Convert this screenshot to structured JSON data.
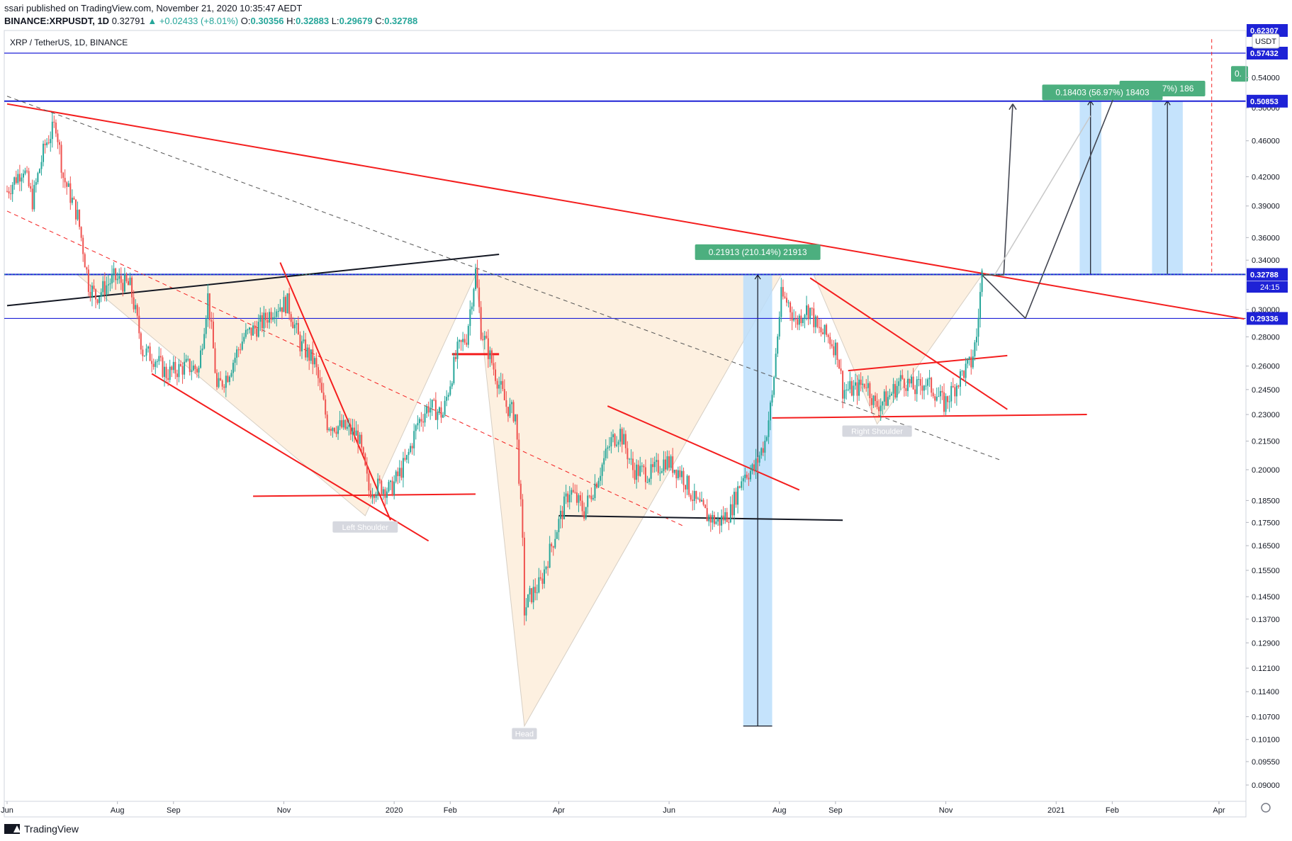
{
  "header": {
    "published": "ssari published on TradingView.com, November 21, 2020 10:35:47 AEDT",
    "symbol": "BINANCE:XRPUSDT, 1D",
    "price": "0.32791",
    "change": "+0.02433 (+8.01%)",
    "o_label": "O:",
    "o": "0.30356",
    "h_label": "H:",
    "h": "0.32883",
    "l_label": "L:",
    "l": "0.29679",
    "c_label": "C:",
    "c": "0.32788"
  },
  "footer": {
    "brand": "TradingView"
  },
  "colors": {
    "up": "#26a69a",
    "down": "#ef5350",
    "trend_red": "#f41e1e",
    "level_blue": "#1e22d6",
    "measure_fill": "#bbdefb",
    "pattern_fill": "#fdf0e0",
    "label_green": "#4caf7f"
  },
  "chart_data": {
    "type": "candlestick",
    "title": "XRP / TetherUS, 1D, BINANCE",
    "currency": "USDT",
    "scale": "log",
    "ylim": [
      0.0865,
      0.6
    ],
    "y_ticks": [
      "0.54000",
      "0.50000",
      "0.46000",
      "0.42000",
      "0.39000",
      "0.36000",
      "0.34000",
      "0.30000",
      "0.28000",
      "0.26000",
      "0.24500",
      "0.23000",
      "0.21500",
      "0.20000",
      "0.18500",
      "0.17500",
      "0.16500",
      "0.15500",
      "0.14500",
      "0.13700",
      "0.12900",
      "0.12100",
      "0.11400",
      "0.10700",
      "0.10100",
      "0.09550",
      "0.09000"
    ],
    "y_tick_values": [
      0.54,
      0.5,
      0.46,
      0.42,
      0.39,
      0.36,
      0.34,
      0.3,
      0.28,
      0.26,
      0.245,
      0.23,
      0.215,
      0.2,
      0.185,
      0.175,
      0.165,
      0.155,
      0.145,
      0.137,
      0.129,
      0.121,
      0.114,
      0.107,
      0.101,
      0.0955,
      0.09
    ],
    "x_range": [
      "2019-06-01",
      "2021-04-12"
    ],
    "x_ticks": [
      {
        "label": "Jun",
        "date": "2019-06-01"
      },
      {
        "label": "Aug",
        "date": "2019-08-01"
      },
      {
        "label": "Sep",
        "date": "2019-09-01"
      },
      {
        "label": "Nov",
        "date": "2019-11-01"
      },
      {
        "label": "2020",
        "date": "2020-01-01"
      },
      {
        "label": "Feb",
        "date": "2020-02-01"
      },
      {
        "label": "Apr",
        "date": "2020-04-01"
      },
      {
        "label": "Jun",
        "date": "2020-06-01"
      },
      {
        "label": "Aug",
        "date": "2020-08-01"
      },
      {
        "label": "Sep",
        "date": "2020-09-01"
      },
      {
        "label": "Nov",
        "date": "2020-11-01"
      },
      {
        "label": "2021",
        "date": "2021-01-01"
      },
      {
        "label": "Feb",
        "date": "2021-02-01"
      },
      {
        "label": "Apr",
        "date": "2021-04-01"
      }
    ],
    "price_path": [
      [
        "2019-06-01",
        0.405
      ],
      [
        "2019-06-10",
        0.43
      ],
      [
        "2019-06-15",
        0.395
      ],
      [
        "2019-06-22",
        0.455
      ],
      [
        "2019-06-28",
        0.48
      ],
      [
        "2019-07-02",
        0.42
      ],
      [
        "2019-07-10",
        0.38
      ],
      [
        "2019-07-16",
        0.32
      ],
      [
        "2019-07-20",
        0.31
      ],
      [
        "2019-07-30",
        0.325
      ],
      [
        "2019-08-08",
        0.318
      ],
      [
        "2019-08-15",
        0.27
      ],
      [
        "2019-08-22",
        0.265
      ],
      [
        "2019-08-28",
        0.255
      ],
      [
        "2019-09-08",
        0.26
      ],
      [
        "2019-09-15",
        0.258
      ],
      [
        "2019-09-20",
        0.31
      ],
      [
        "2019-09-25",
        0.245
      ],
      [
        "2019-10-01",
        0.255
      ],
      [
        "2019-10-10",
        0.28
      ],
      [
        "2019-10-20",
        0.29
      ],
      [
        "2019-10-27",
        0.302
      ],
      [
        "2019-11-03",
        0.305
      ],
      [
        "2019-11-10",
        0.275
      ],
      [
        "2019-11-18",
        0.262
      ],
      [
        "2019-11-25",
        0.225
      ],
      [
        "2019-12-05",
        0.222
      ],
      [
        "2019-12-12",
        0.218
      ],
      [
        "2019-12-18",
        0.19
      ],
      [
        "2019-12-24",
        0.192
      ],
      [
        "2019-12-30",
        0.19
      ],
      [
        "2020-01-08",
        0.205
      ],
      [
        "2020-01-14",
        0.225
      ],
      [
        "2020-01-20",
        0.235
      ],
      [
        "2020-01-28",
        0.23
      ],
      [
        "2020-02-05",
        0.27
      ],
      [
        "2020-02-10",
        0.28
      ],
      [
        "2020-02-15",
        0.33
      ],
      [
        "2020-02-18",
        0.285
      ],
      [
        "2020-02-22",
        0.27
      ],
      [
        "2020-02-26",
        0.255
      ],
      [
        "2020-03-03",
        0.235
      ],
      [
        "2020-03-08",
        0.23
      ],
      [
        "2020-03-12",
        0.165
      ],
      [
        "2020-03-13",
        0.14
      ],
      [
        "2020-03-16",
        0.145
      ],
      [
        "2020-03-22",
        0.15
      ],
      [
        "2020-03-30",
        0.17
      ],
      [
        "2020-04-07",
        0.19
      ],
      [
        "2020-04-15",
        0.18
      ],
      [
        "2020-04-22",
        0.195
      ],
      [
        "2020-04-30",
        0.215
      ],
      [
        "2020-05-05",
        0.22
      ],
      [
        "2020-05-12",
        0.2
      ],
      [
        "2020-05-22",
        0.198
      ],
      [
        "2020-05-30",
        0.205
      ],
      [
        "2020-06-08",
        0.198
      ],
      [
        "2020-06-15",
        0.185
      ],
      [
        "2020-06-22",
        0.178
      ],
      [
        "2020-06-28",
        0.175
      ],
      [
        "2020-07-05",
        0.18
      ],
      [
        "2020-07-12",
        0.198
      ],
      [
        "2020-07-18",
        0.2
      ],
      [
        "2020-07-24",
        0.215
      ],
      [
        "2020-07-28",
        0.24
      ],
      [
        "2020-08-02",
        0.31
      ],
      [
        "2020-08-06",
        0.305
      ],
      [
        "2020-08-10",
        0.29
      ],
      [
        "2020-08-15",
        0.3
      ],
      [
        "2020-08-18",
        0.3
      ],
      [
        "2020-08-22",
        0.285
      ],
      [
        "2020-08-28",
        0.28
      ],
      [
        "2020-09-02",
        0.27
      ],
      [
        "2020-09-05",
        0.245
      ],
      [
        "2020-09-12",
        0.245
      ],
      [
        "2020-09-18",
        0.25
      ],
      [
        "2020-09-23",
        0.235
      ],
      [
        "2020-09-30",
        0.24
      ],
      [
        "2020-10-08",
        0.252
      ],
      [
        "2020-10-15",
        0.245
      ],
      [
        "2020-10-20",
        0.25
      ],
      [
        "2020-10-25",
        0.245
      ],
      [
        "2020-10-31",
        0.236
      ],
      [
        "2020-11-05",
        0.245
      ],
      [
        "2020-11-10",
        0.255
      ],
      [
        "2020-11-15",
        0.262
      ],
      [
        "2020-11-18",
        0.28
      ],
      [
        "2020-11-21",
        0.328
      ]
    ],
    "levels": [
      {
        "price": 0.57432,
        "label": "0.57432"
      },
      {
        "price": 0.50853,
        "label": "0.50853"
      },
      {
        "price": 0.32788,
        "label": "0.32788"
      },
      {
        "price": 0.29336,
        "label": "0.29336"
      }
    ],
    "countdown": "24:15",
    "top_partial_tick": "0.62307",
    "annotations": [
      {
        "text": "Left Shoulder",
        "date": "2019-12-16",
        "price": 0.173
      },
      {
        "text": "Head",
        "date": "2020-03-13",
        "price": 0.1025
      },
      {
        "text": "Right Shoulder",
        "date": "2020-09-24",
        "price": 0.2205
      }
    ],
    "measures": [
      {
        "label": "0.21913 (210.14%) 21913",
        "from": [
          "2020-07-12",
          0.1045
        ],
        "to": [
          "2020-07-28",
          0.3275
        ]
      },
      {
        "label": "0.18403 (56.97%) 18403",
        "from": [
          "2021-01-14",
          0.3275
        ],
        "to": [
          "2021-01-26",
          0.509
        ]
      },
      {
        "label": "13 (57.47%) 186",
        "from": [
          "2021-02-23",
          0.3275
        ],
        "to": [
          "2021-03-12",
          0.509
        ]
      },
      {
        "label": "0.",
        "date": "2021-04-01",
        "price": 0.545
      }
    ]
  }
}
